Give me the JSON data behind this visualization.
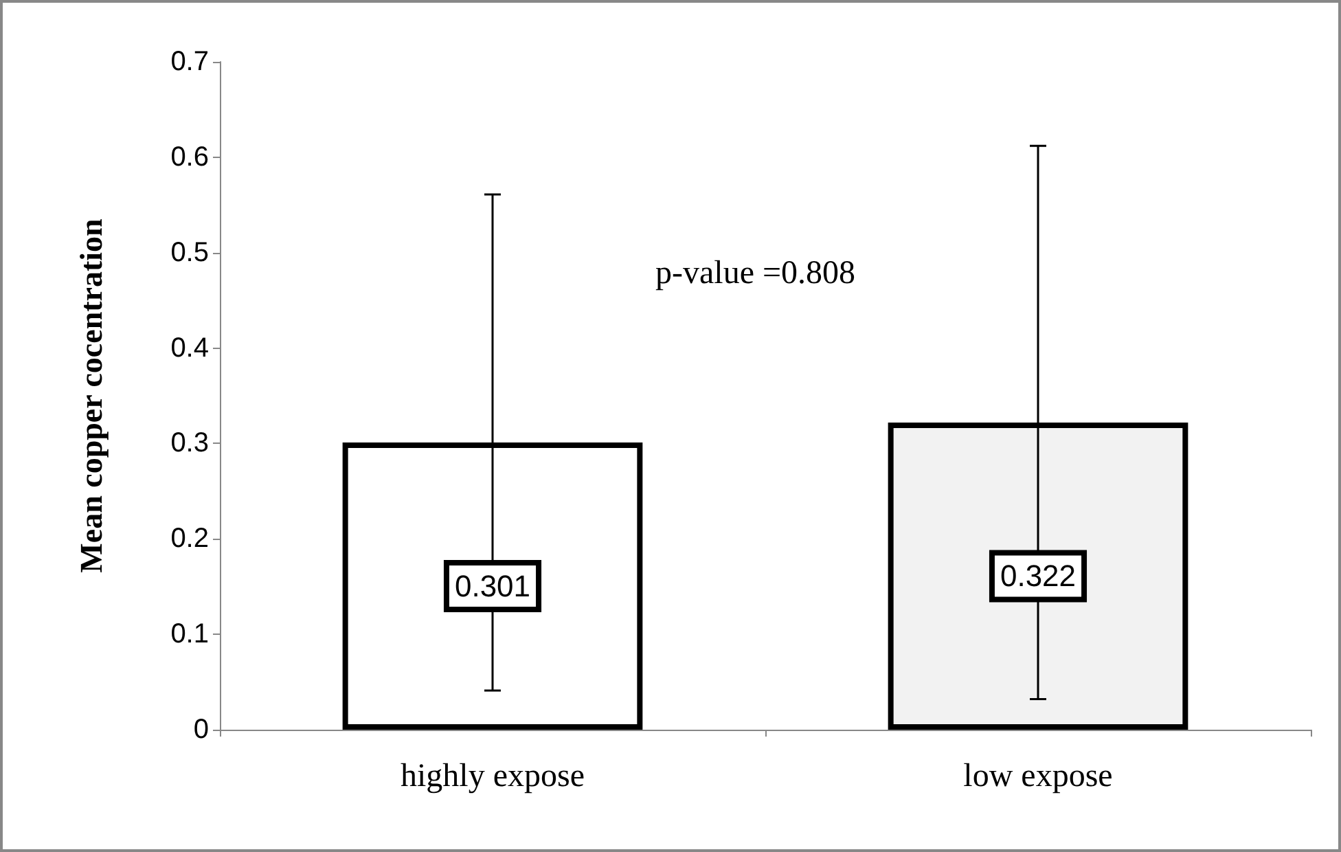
{
  "chart_data": {
    "type": "bar",
    "ylabel": "Mean copper cocentration",
    "categories": [
      "highly expose",
      "low expose"
    ],
    "values": [
      0.301,
      0.322
    ],
    "colors": [
      "#ffffff",
      "#f2f2f2"
    ],
    "errors": [
      0.26,
      0.29
    ],
    "data_labels": true,
    "ylim": [
      0,
      0.7
    ],
    "yticks": [
      0,
      0.1,
      0.2,
      0.3,
      0.4,
      0.5,
      0.6,
      0.7
    ],
    "annotations": [
      "p-value =0.808"
    ],
    "tick_labels": true
  }
}
